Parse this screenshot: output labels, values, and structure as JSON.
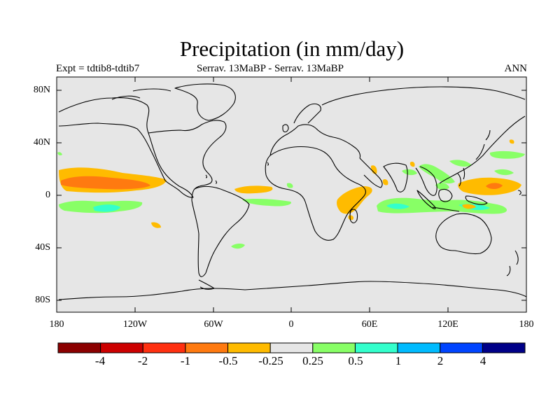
{
  "title": "Precipitation (in mm/day)",
  "left_string": "Expt = tdtib8-tdtib7",
  "center_string": "Serrav.   13MaBP - Serrav.   13MaBP",
  "right_string": "ANN",
  "lat_labels": [
    "80N",
    "40N",
    "0",
    "40S",
    "80S"
  ],
  "lon_labels": [
    "180",
    "120W",
    "60W",
    "0",
    "60E",
    "120E",
    "180"
  ],
  "colorbar": {
    "labels": [
      "-4",
      "-2",
      "-1",
      "-0.5",
      "-0.25",
      "0.25",
      "0.5",
      "1",
      "2",
      "4"
    ],
    "colors": [
      "#8b0000",
      "#cc0000",
      "#ff3010",
      "#ff7a10",
      "#ffbb00",
      "#e6e6e6",
      "#88ff66",
      "#33ffcc",
      "#00bbff",
      "#0044ff",
      "#000088"
    ]
  },
  "map": {
    "background": "#e6e6e6",
    "coastline": "#000000"
  }
}
